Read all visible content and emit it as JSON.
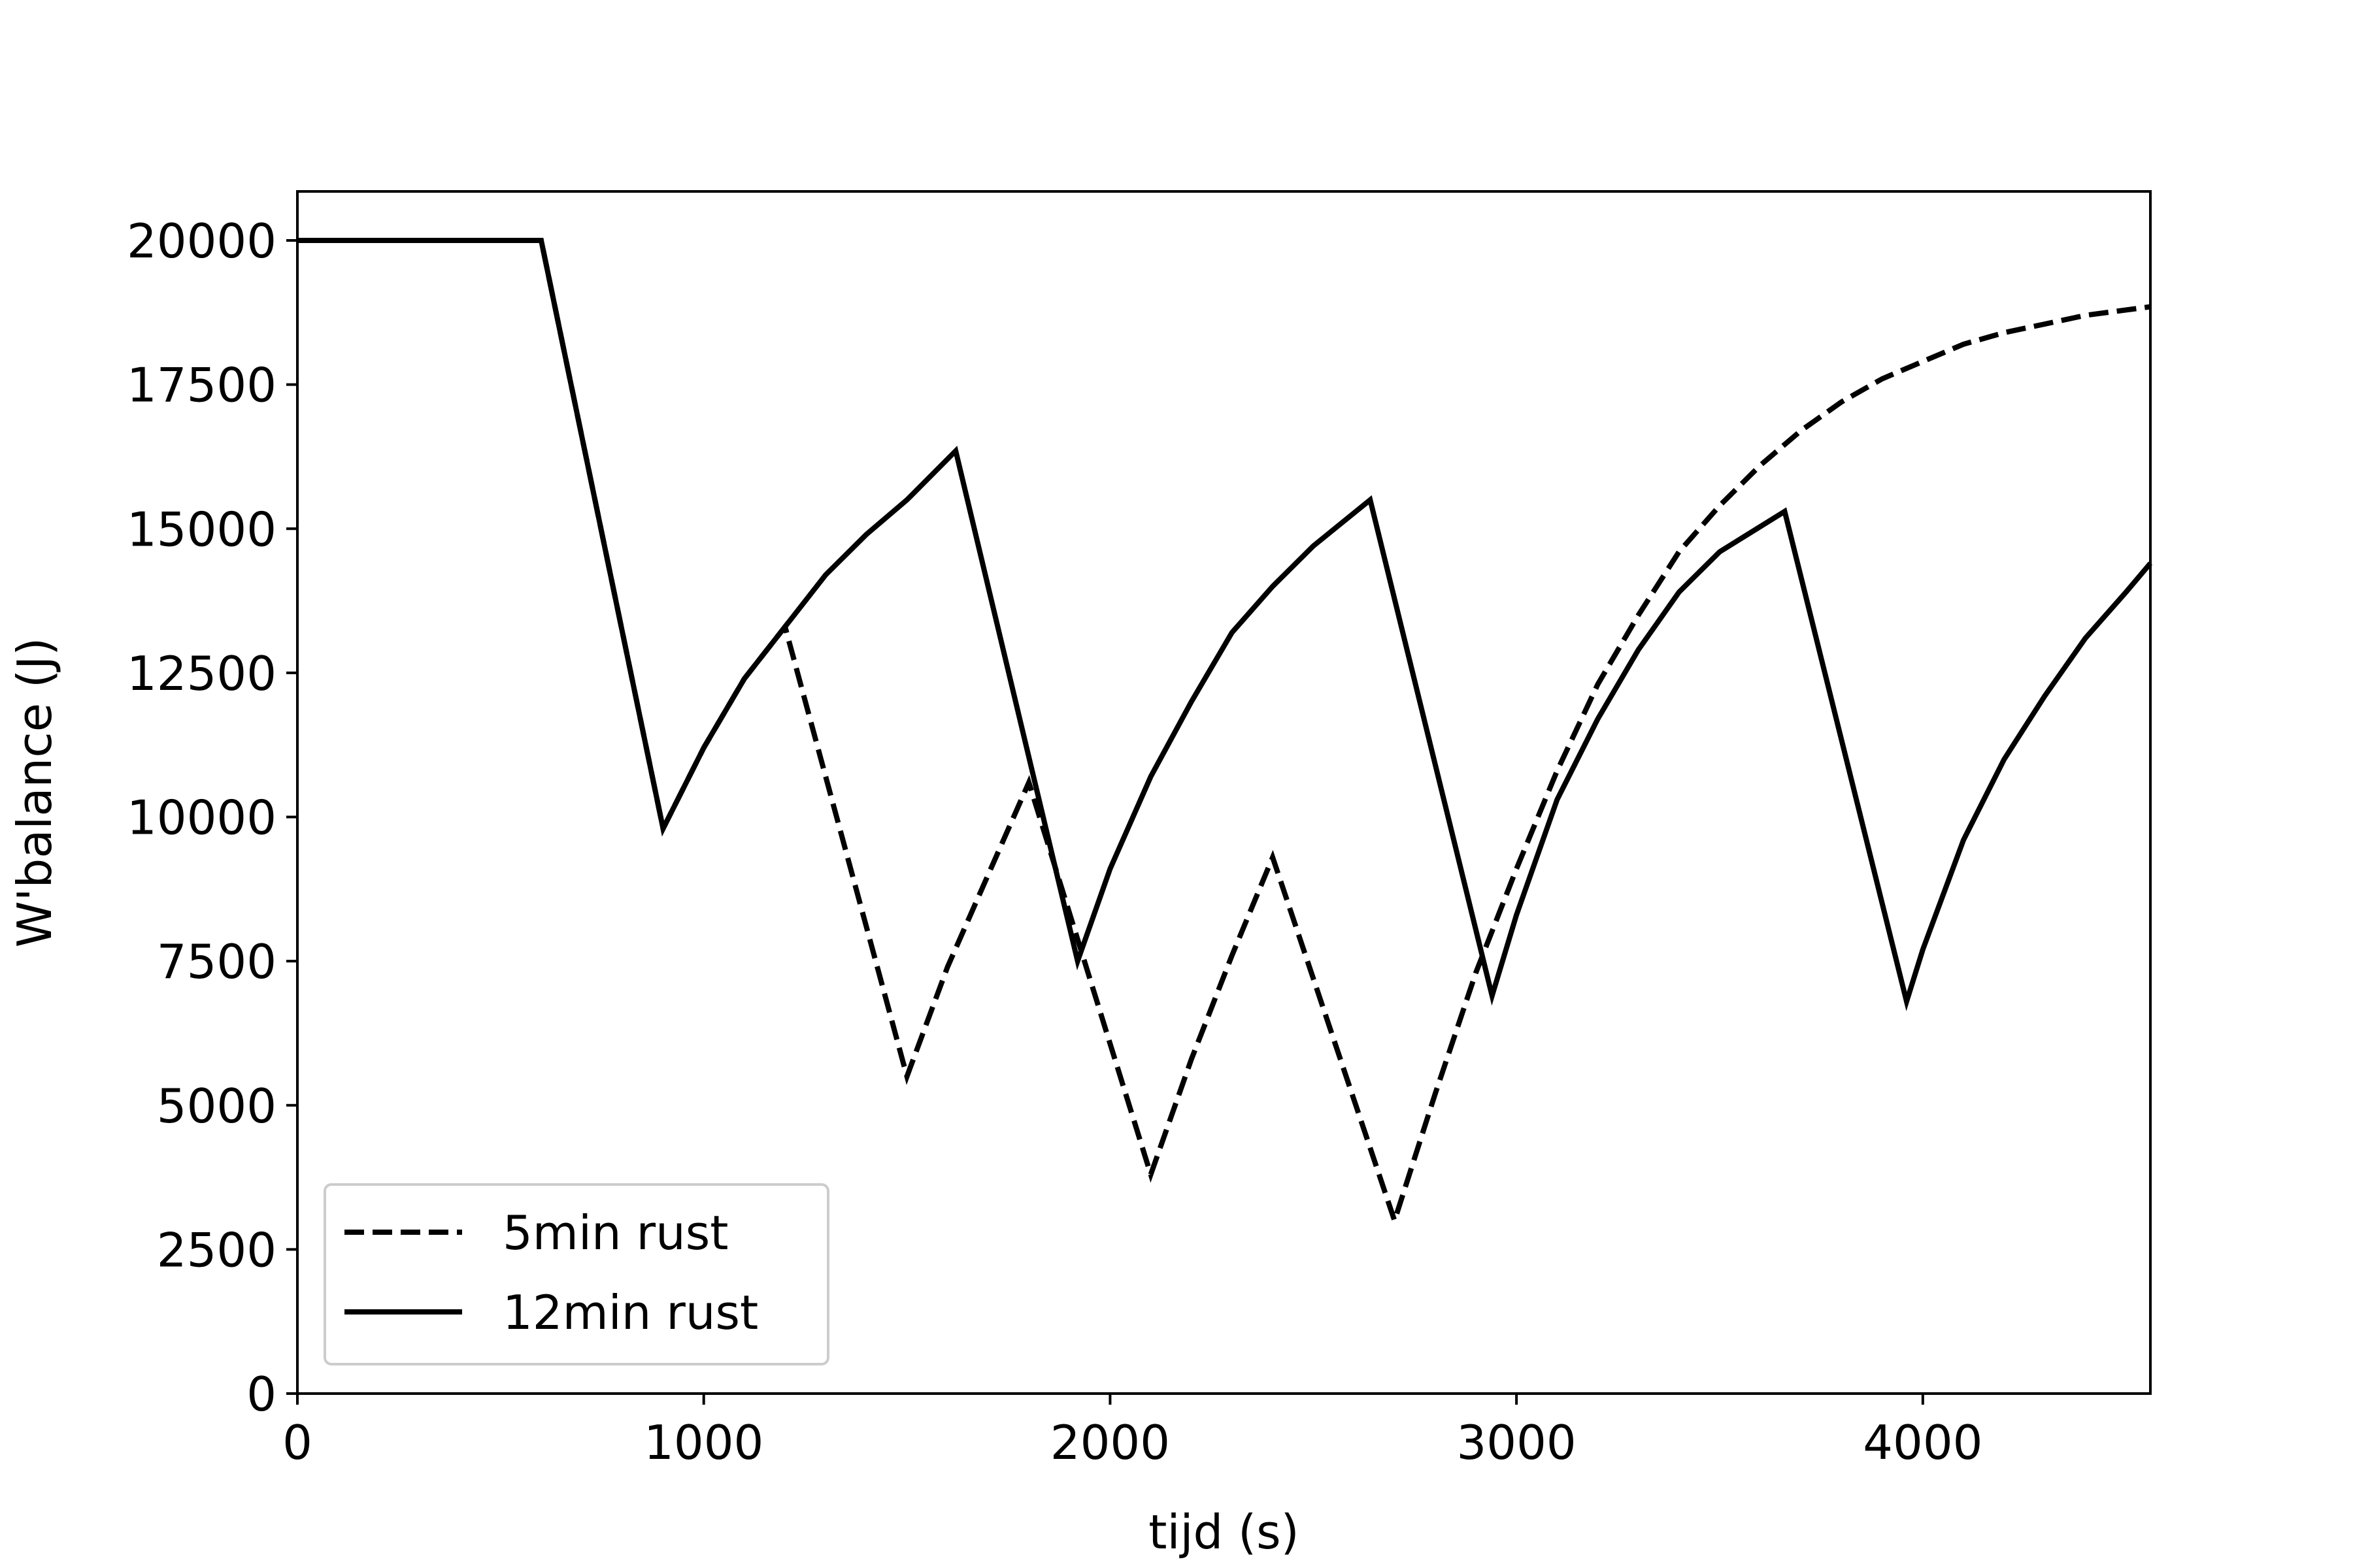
{
  "chart_data": {
    "type": "line",
    "title": "",
    "xlabel": "tijd (s)",
    "ylabel": "W'balance (J)",
    "xlim": [
      0,
      4560
    ],
    "ylim": [
      0,
      20850
    ],
    "xticks": [
      0,
      1000,
      2000,
      3000,
      4000
    ],
    "yticks": [
      0,
      2500,
      5000,
      7500,
      10000,
      12500,
      15000,
      17500,
      20000
    ],
    "grid": false,
    "legend_position": "lower-left",
    "series": [
      {
        "name": "5min rust",
        "style": "dashed",
        "color": "#000000",
        "points": [
          [
            0,
            20000
          ],
          [
            600,
            20000
          ],
          [
            900,
            9800
          ],
          [
            1000,
            11200
          ],
          [
            1100,
            12400
          ],
          [
            1200,
            13300
          ],
          [
            1500,
            5500
          ],
          [
            1600,
            7400
          ],
          [
            1700,
            9000
          ],
          [
            1800,
            10600
          ],
          [
            2100,
            3800
          ],
          [
            2200,
            5800
          ],
          [
            2300,
            7600
          ],
          [
            2400,
            9300
          ],
          [
            2700,
            3000
          ],
          [
            2800,
            5200
          ],
          [
            2900,
            7300
          ],
          [
            3000,
            9100
          ],
          [
            3100,
            10800
          ],
          [
            3200,
            12300
          ],
          [
            3300,
            13500
          ],
          [
            3400,
            14600
          ],
          [
            3500,
            15400
          ],
          [
            3600,
            16100
          ],
          [
            3700,
            16700
          ],
          [
            3800,
            17200
          ],
          [
            3900,
            17600
          ],
          [
            4000,
            17900
          ],
          [
            4100,
            18200
          ],
          [
            4200,
            18400
          ],
          [
            4300,
            18550
          ],
          [
            4400,
            18700
          ],
          [
            4560,
            18850
          ]
        ]
      },
      {
        "name": "12min rust",
        "style": "solid",
        "color": "#000000",
        "points": [
          [
            0,
            20000
          ],
          [
            600,
            20000
          ],
          [
            900,
            9800
          ],
          [
            1000,
            11200
          ],
          [
            1100,
            12400
          ],
          [
            1200,
            13300
          ],
          [
            1300,
            14200
          ],
          [
            1400,
            14900
          ],
          [
            1500,
            15500
          ],
          [
            1620,
            16350
          ],
          [
            1920,
            7500
          ],
          [
            2000,
            9100
          ],
          [
            2100,
            10700
          ],
          [
            2200,
            12000
          ],
          [
            2300,
            13200
          ],
          [
            2400,
            14000
          ],
          [
            2500,
            14700
          ],
          [
            2640,
            15500
          ],
          [
            2940,
            6900
          ],
          [
            3000,
            8300
          ],
          [
            3100,
            10300
          ],
          [
            3200,
            11700
          ],
          [
            3300,
            12900
          ],
          [
            3400,
            13900
          ],
          [
            3500,
            14600
          ],
          [
            3660,
            15300
          ],
          [
            3960,
            6800
          ],
          [
            4000,
            7700
          ],
          [
            4100,
            9600
          ],
          [
            4200,
            11000
          ],
          [
            4300,
            12100
          ],
          [
            4400,
            13100
          ],
          [
            4500,
            13900
          ],
          [
            4560,
            14400
          ]
        ]
      }
    ]
  }
}
